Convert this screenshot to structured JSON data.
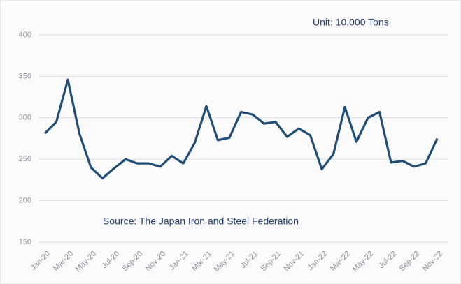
{
  "chart_data": {
    "type": "line",
    "annotations": [
      "Unit:  10,000 Tons",
      "Source: The Japan Iron and Steel Federation"
    ],
    "categories": [
      "Jan-20",
      null,
      "Mar-20",
      null,
      "May-20",
      null,
      "Jul-20",
      null,
      "Sep-20",
      null,
      "Nov-20",
      null,
      "Jan-21",
      null,
      "Mar-21",
      null,
      "May-21",
      null,
      "Jul-21",
      null,
      "Sep-21",
      null,
      "Nov-21",
      null,
      "Jan-22",
      null,
      "Mar-22",
      null,
      "May-22",
      null,
      "Jul-22",
      null,
      "Sep-22",
      null,
      "Nov-22"
    ],
    "series": [
      {
        "color": "#1f4e79",
        "values": [
          281,
          295,
          346,
          281,
          240,
          227,
          239,
          250,
          245,
          245,
          241,
          254,
          245,
          270,
          314,
          273,
          276,
          307,
          304,
          293,
          295,
          277,
          287,
          279,
          238,
          256,
          313,
          271,
          300,
          307,
          246,
          248,
          241,
          245,
          275
        ]
      }
    ],
    "ylim": [
      150,
      400
    ],
    "yticks": [
      150,
      200,
      250,
      300,
      350,
      400
    ],
    "grid": true
  }
}
